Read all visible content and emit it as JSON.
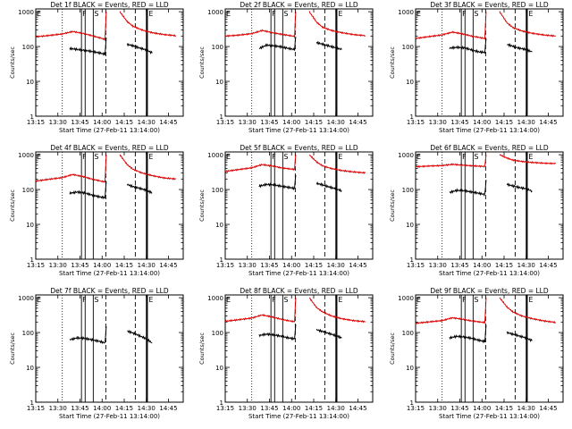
{
  "figure": {
    "background": "#ffffff",
    "event_color": "#000000",
    "lld_color": "#dd0000",
    "time_range_min": [
      0,
      100
    ],
    "x_tick_labels": [
      "13:15",
      "13:30",
      "13:45",
      "14:00",
      "14:15",
      "14:30",
      "14:45"
    ],
    "x_tick_minutes": [
      0,
      15,
      30,
      45,
      60,
      75,
      90
    ],
    "y_tick_labels": [
      "1",
      "10",
      "100",
      "1000"
    ],
    "y_tick_values": [
      1,
      10,
      100,
      1000
    ],
    "ylim": [
      1,
      1200
    ],
    "ylabel": "Counts/sec",
    "xlabel": "Start Time (27-Feb-11 13:14:00)",
    "markers": {
      "e1": "E",
      "f": "F",
      "s": "S",
      "e2": "E"
    }
  },
  "chart_data": [
    {
      "type": "line",
      "title": "Det 1f BLACK = Events, RED = LLD",
      "xlabel": "Start Time (27-Feb-11 13:14:00)",
      "ylabel": "Counts/sec",
      "ylim": [
        1,
        1200
      ],
      "series": [
        {
          "color": "#000000",
          "segments": [
            {
              "x": [
                23,
                28,
                33,
                38,
                43,
                47,
                47.8
              ],
              "y": [
                88,
                83,
                78,
                72,
                66,
                60,
                180
              ]
            },
            {
              "x": [
                62,
                65,
                70,
                75,
                79
              ],
              "y": [
                115,
                108,
                92,
                80,
                65
              ]
            }
          ]
        },
        {
          "color": "#dd0000",
          "segments": [
            {
              "x": [
                0,
                8,
                18,
                25,
                32,
                38,
                44,
                47,
                47.8
              ],
              "y": [
                190,
                205,
                230,
                270,
                240,
                205,
                175,
                160,
                1000
              ]
            },
            {
              "x": [
                57,
                62,
                66,
                72,
                79,
                87,
                95
              ],
              "y": [
                1000,
                520,
                380,
                300,
                250,
                220,
                205
              ]
            }
          ]
        }
      ],
      "vlines": {
        "dotted": [
          18
        ],
        "solid": [
          31,
          33.5,
          39,
          75
        ],
        "dashed": [
          47.5,
          67.5
        ]
      }
    },
    {
      "type": "line",
      "title": "Det 2f BLACK = Events, RED = LLD",
      "xlabel": "Start Time (27-Feb-11 13:14:00)",
      "ylabel": "Counts/sec",
      "ylim": [
        1,
        1200
      ],
      "series": [
        {
          "color": "#000000",
          "segments": [
            {
              "x": [
                23,
                28,
                33,
                38,
                43,
                47,
                47.8
              ],
              "y": [
                88,
                110,
                105,
                98,
                88,
                82,
                190
              ]
            },
            {
              "x": [
                62,
                65,
                70,
                75,
                79
              ],
              "y": [
                130,
                120,
                105,
                92,
                82
              ]
            }
          ]
        },
        {
          "color": "#dd0000",
          "segments": [
            {
              "x": [
                0,
                8,
                18,
                25,
                32,
                38,
                44,
                47,
                47.8
              ],
              "y": [
                200,
                210,
                235,
                290,
                250,
                225,
                205,
                195,
                1000
              ]
            },
            {
              "x": [
                57,
                62,
                66,
                72,
                79,
                87,
                95
              ],
              "y": [
                1000,
                500,
                360,
                290,
                250,
                220,
                205
              ]
            }
          ]
        }
      ],
      "vlines": {
        "dotted": [
          18
        ],
        "solid": [
          31,
          33.5,
          39,
          75
        ],
        "dashed": [
          47.5,
          67.5
        ]
      }
    },
    {
      "type": "line",
      "title": "Det 3f BLACK = Events, RED = LLD",
      "xlabel": "Start Time (27-Feb-11 13:14:00)",
      "ylabel": "Counts/sec",
      "ylim": [
        1,
        1200
      ],
      "series": [
        {
          "color": "#000000",
          "segments": [
            {
              "x": [
                23,
                28,
                33,
                38,
                43,
                47,
                47.8
              ],
              "y": [
                90,
                95,
                92,
                80,
                70,
                68,
                170
              ]
            },
            {
              "x": [
                62,
                65,
                70,
                75,
                79
              ],
              "y": [
                115,
                105,
                90,
                82,
                70
              ]
            }
          ]
        },
        {
          "color": "#dd0000",
          "segments": [
            {
              "x": [
                0,
                8,
                18,
                25,
                32,
                38,
                44,
                47,
                47.8
              ],
              "y": [
                170,
                190,
                215,
                260,
                230,
                200,
                180,
                170,
                1000
              ]
            },
            {
              "x": [
                57,
                62,
                66,
                72,
                79,
                87,
                95
              ],
              "y": [
                1000,
                480,
                350,
                280,
                240,
                215,
                200
              ]
            }
          ]
        }
      ],
      "vlines": {
        "dotted": [
          18
        ],
        "solid": [
          31,
          33.5,
          39,
          75
        ],
        "dashed": [
          47.5,
          67.5
        ]
      }
    },
    {
      "type": "line",
      "title": "Det 4f BLACK = Events, RED = LLD",
      "xlabel": "Start Time (27-Feb-11 13:14:00)",
      "ylabel": "Counts/sec",
      "ylim": [
        1,
        1200
      ],
      "series": [
        {
          "color": "#000000",
          "segments": [
            {
              "x": [
                23,
                28,
                33,
                38,
                43,
                47,
                47.8
              ],
              "y": [
                78,
                85,
                80,
                70,
                62,
                58,
                170
              ]
            },
            {
              "x": [
                62,
                65,
                70,
                75,
                79
              ],
              "y": [
                140,
                125,
                110,
                95,
                80
              ]
            }
          ]
        },
        {
          "color": "#dd0000",
          "segments": [
            {
              "x": [
                0,
                8,
                18,
                25,
                32,
                38,
                44,
                47,
                47.8
              ],
              "y": [
                175,
                195,
                220,
                270,
                235,
                200,
                175,
                165,
                1000
              ]
            },
            {
              "x": [
                57,
                62,
                66,
                72,
                79,
                87,
                95
              ],
              "y": [
                1000,
                520,
                380,
                300,
                250,
                215,
                200
              ]
            }
          ]
        }
      ],
      "vlines": {
        "dotted": [
          18
        ],
        "solid": [
          31,
          33.5,
          39,
          75
        ],
        "dashed": [
          47.5,
          67.5
        ]
      }
    },
    {
      "type": "line",
      "title": "Det 5f BLACK = Events, RED = LLD",
      "xlabel": "Start Time (27-Feb-11 13:14:00)",
      "ylabel": "Counts/sec",
      "ylim": [
        1,
        1200
      ],
      "series": [
        {
          "color": "#000000",
          "segments": [
            {
              "x": [
                23,
                28,
                33,
                38,
                43,
                47,
                47.8
              ],
              "y": [
                125,
                140,
                135,
                125,
                115,
                108,
                260
              ]
            },
            {
              "x": [
                62,
                65,
                70,
                75,
                79
              ],
              "y": [
                150,
                140,
                120,
                105,
                92
              ]
            }
          ]
        },
        {
          "color": "#dd0000",
          "segments": [
            {
              "x": [
                0,
                8,
                18,
                25,
                32,
                38,
                44,
                47,
                47.8
              ],
              "y": [
                330,
                370,
                420,
                520,
                470,
                420,
                390,
                380,
                1000
              ]
            },
            {
              "x": [
                57,
                62,
                66,
                72,
                79,
                87,
                95
              ],
              "y": [
                1000,
                620,
                480,
                400,
                350,
                320,
                300
              ]
            }
          ]
        }
      ],
      "vlines": {
        "dotted": [
          18
        ],
        "solid": [
          31,
          33.5,
          39,
          75
        ],
        "dashed": [
          47.5,
          67.5
        ]
      }
    },
    {
      "type": "line",
      "title": "Det 6f BLACK = Events, RED = LLD",
      "xlabel": "Start Time (27-Feb-11 13:14:00)",
      "ylabel": "Counts/sec",
      "ylim": [
        1,
        1200
      ],
      "series": [
        {
          "color": "#000000",
          "segments": [
            {
              "x": [
                23,
                28,
                33,
                38,
                43,
                47,
                47.8
              ],
              "y": [
                82,
                95,
                92,
                85,
                78,
                72,
                190
              ]
            },
            {
              "x": [
                62,
                65,
                70,
                75,
                79
              ],
              "y": [
                140,
                130,
                115,
                105,
                90
              ]
            }
          ]
        },
        {
          "color": "#dd0000",
          "segments": [
            {
              "x": [
                0,
                8,
                18,
                25,
                32,
                38,
                44,
                47,
                47.8
              ],
              "y": [
                450,
                470,
                490,
                530,
                500,
                480,
                465,
                460,
                1000
              ]
            },
            {
              "x": [
                57,
                62,
                66,
                72,
                79,
                87,
                95
              ],
              "y": [
                1000,
                800,
                700,
                640,
                600,
                570,
                555
              ]
            }
          ]
        }
      ],
      "vlines": {
        "dotted": [
          18
        ],
        "solid": [
          31,
          33.5,
          39,
          75
        ],
        "dashed": [
          47.5,
          67.5
        ]
      }
    },
    {
      "type": "line",
      "title": "Det 7f BLACK = Events, RED = LLD",
      "xlabel": "Start Time (27-Feb-11 13:14:00)",
      "ylabel": "Counts/sec",
      "ylim": [
        1,
        1200
      ],
      "series": [
        {
          "color": "#000000",
          "segments": [
            {
              "x": [
                23,
                28,
                33,
                38,
                43,
                47,
                47.8
              ],
              "y": [
                62,
                70,
                68,
                62,
                56,
                50,
                150
              ]
            },
            {
              "x": [
                62,
                65,
                70,
                75,
                79
              ],
              "y": [
                110,
                100,
                82,
                66,
                50
              ]
            }
          ]
        }
      ],
      "vlines": {
        "dotted": [
          18
        ],
        "solid": [
          31,
          33.5,
          39,
          75
        ],
        "dashed": [
          47.5,
          67.5
        ]
      }
    },
    {
      "type": "line",
      "title": "Det 8f BLACK = Events, RED = LLD",
      "xlabel": "Start Time (27-Feb-11 13:14:00)",
      "ylabel": "Counts/sec",
      "ylim": [
        1,
        1200
      ],
      "series": [
        {
          "color": "#000000",
          "segments": [
            {
              "x": [
                23,
                28,
                33,
                38,
                43,
                47,
                47.8
              ],
              "y": [
                82,
                90,
                86,
                78,
                70,
                66,
                170
              ]
            },
            {
              "x": [
                62,
                65,
                70,
                75,
                79
              ],
              "y": [
                120,
                110,
                95,
                82,
                70
              ]
            }
          ]
        },
        {
          "color": "#dd0000",
          "segments": [
            {
              "x": [
                0,
                8,
                18,
                25,
                32,
                38,
                44,
                47,
                47.8
              ],
              "y": [
                210,
                230,
                260,
                320,
                280,
                240,
                215,
                205,
                1000
              ]
            },
            {
              "x": [
                57,
                62,
                66,
                72,
                79,
                87,
                95
              ],
              "y": [
                1000,
                520,
                390,
                300,
                250,
                220,
                205
              ]
            }
          ]
        }
      ],
      "vlines": {
        "dotted": [
          18
        ],
        "solid": [
          31,
          33.5,
          39,
          75
        ],
        "dashed": [
          47.5,
          67.5
        ]
      }
    },
    {
      "type": "line",
      "title": "Det 9f BLACK = Events, RED = LLD",
      "xlabel": "Start Time (27-Feb-11 13:14:00)",
      "ylabel": "Counts/sec",
      "ylim": [
        1,
        1200
      ],
      "series": [
        {
          "color": "#000000",
          "segments": [
            {
              "x": [
                23,
                28,
                33,
                38,
                43,
                47,
                47.8
              ],
              "y": [
                70,
                78,
                75,
                68,
                60,
                55,
                165
              ]
            },
            {
              "x": [
                62,
                65,
                70,
                75,
                79
              ],
              "y": [
                100,
                92,
                80,
                70,
                58
              ]
            }
          ]
        },
        {
          "color": "#dd0000",
          "segments": [
            {
              "x": [
                0,
                8,
                18,
                25,
                32,
                38,
                44,
                47,
                47.8
              ],
              "y": [
                185,
                200,
                220,
                265,
                240,
                215,
                200,
                195,
                1000
              ]
            },
            {
              "x": [
                57,
                62,
                66,
                72,
                79,
                87,
                95
              ],
              "y": [
                1000,
                540,
                390,
                300,
                250,
                215,
                195
              ]
            }
          ]
        }
      ],
      "vlines": {
        "dotted": [
          18
        ],
        "solid": [
          31,
          33.5,
          39,
          75
        ],
        "dashed": [
          47.5,
          67.5
        ]
      }
    }
  ]
}
